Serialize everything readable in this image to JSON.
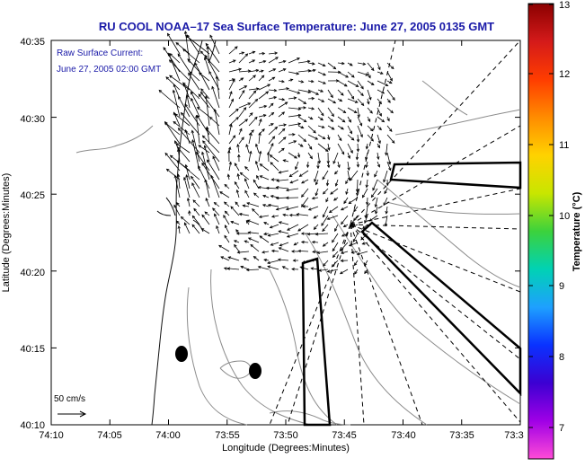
{
  "title": "RU COOL  NOAA–17  Sea Surface Temperature:  June 27, 2005 0135 GMT",
  "annotation": {
    "line1": "Raw Surface Current:",
    "line2": "June 27, 2005 02:00 GMT"
  },
  "axes": {
    "xlabel": "Longitude (Degrees:Minutes)",
    "ylabel": "Latitude (Degrees:Minutes)",
    "xticks": [
      "74:10",
      "74:05",
      "74:00",
      "73:55",
      "73:50",
      "73:45",
      "73:40",
      "73:35",
      "73:3"
    ],
    "yticks": [
      "40:35",
      "40:30",
      "40:25",
      "40:20",
      "40:15",
      "40:10"
    ]
  },
  "scale": {
    "label": "50 cm/s"
  },
  "colorbar": {
    "label": "Temperature (°C)",
    "ticks": [
      "13",
      "12",
      "11",
      "10",
      "9",
      "8",
      "7"
    ],
    "colors": [
      "#8b0000",
      "#d41a1a",
      "#ff3d00",
      "#ff8c00",
      "#ffd200",
      "#c8e600",
      "#3cd23c",
      "#00d2b4",
      "#1ea0ff",
      "#0a32ff",
      "#3c00d2",
      "#a000e6",
      "#ff4bd7"
    ]
  },
  "chart_data": {
    "type": "map",
    "title": "RU COOL  NOAA–17  Sea Surface Temperature:  June 27, 2005 0135 GMT",
    "xlabel": "Longitude (Degrees:Minutes)",
    "ylabel": "Latitude (Degrees:Minutes)",
    "xlim_deg": [
      -74.1667,
      -73.5
    ],
    "ylim_deg": [
      40.1667,
      40.5833
    ],
    "colorbar_range_C": [
      6.5,
      13
    ],
    "vector_scale_cms": 50,
    "markers": [
      {
        "name": "station-1",
        "lon_deg": -73.978,
        "lat_deg": 40.245
      },
      {
        "name": "station-2",
        "lon_deg": -73.883,
        "lat_deg": 40.225
      }
    ]
  }
}
